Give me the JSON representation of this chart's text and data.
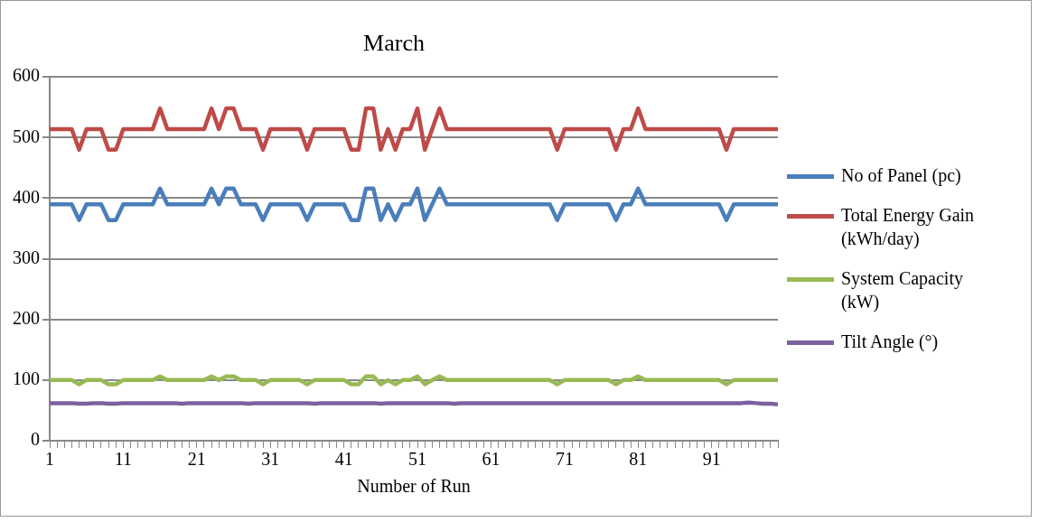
{
  "chart_data": {
    "type": "line",
    "title": "March",
    "xlabel": "Number of Run",
    "categories": [
      "1",
      null,
      null,
      null,
      null,
      null,
      null,
      null,
      null,
      null,
      "11",
      null,
      null,
      null,
      null,
      null,
      null,
      null,
      null,
      null,
      "21",
      null,
      null,
      null,
      null,
      null,
      null,
      null,
      null,
      null,
      "31",
      null,
      null,
      null,
      null,
      null,
      null,
      null,
      null,
      null,
      "41",
      null,
      null,
      null,
      null,
      null,
      null,
      null,
      null,
      null,
      "51",
      null,
      null,
      null,
      null,
      null,
      null,
      null,
      null,
      null,
      "61",
      null,
      null,
      null,
      null,
      null,
      null,
      null,
      null,
      null,
      "71",
      null,
      null,
      null,
      null,
      null,
      null,
      null,
      null,
      null,
      "81",
      null,
      null,
      null,
      null,
      null,
      null,
      null,
      null,
      null,
      "91",
      null,
      null,
      null,
      null,
      null,
      null,
      null,
      null,
      null
    ],
    "series": [
      {
        "name": "No of Panel (pc)",
        "color": "#4a7ebb",
        "values": [
          390,
          390,
          390,
          390,
          364,
          390,
          390,
          390,
          364,
          364,
          390,
          390,
          390,
          390,
          390,
          416,
          390,
          390,
          390,
          390,
          390,
          390,
          416,
          390,
          416,
          416,
          390,
          390,
          390,
          364,
          390,
          390,
          390,
          390,
          390,
          364,
          390,
          390,
          390,
          390,
          390,
          364,
          364,
          416,
          416,
          364,
          390,
          364,
          390,
          390,
          416,
          364,
          390,
          416,
          390,
          390,
          390,
          390,
          390,
          390,
          390,
          390,
          390,
          390,
          390,
          390,
          390,
          390,
          390,
          364,
          390,
          390,
          390,
          390,
          390,
          390,
          390,
          364,
          390,
          390,
          416,
          390,
          390,
          390,
          390,
          390,
          390,
          390,
          390,
          390,
          390,
          390,
          364,
          390,
          390,
          390,
          390,
          390,
          390,
          390
        ]
      },
      {
        "name": "Total Energy Gain (kWh/day)",
        "color": "#be4b48",
        "values": [
          514,
          514,
          514,
          514,
          480,
          514,
          514,
          514,
          480,
          480,
          514,
          514,
          514,
          514,
          514,
          548,
          514,
          514,
          514,
          514,
          514,
          514,
          548,
          514,
          548,
          548,
          514,
          514,
          514,
          480,
          514,
          514,
          514,
          514,
          514,
          480,
          514,
          514,
          514,
          514,
          514,
          480,
          480,
          548,
          548,
          480,
          514,
          480,
          514,
          514,
          548,
          480,
          514,
          548,
          514,
          514,
          514,
          514,
          514,
          514,
          514,
          514,
          514,
          514,
          514,
          514,
          514,
          514,
          514,
          480,
          514,
          514,
          514,
          514,
          514,
          514,
          514,
          480,
          514,
          514,
          548,
          514,
          514,
          514,
          514,
          514,
          514,
          514,
          514,
          514,
          514,
          514,
          480,
          514,
          514,
          514,
          514,
          514,
          514,
          514
        ]
      },
      {
        "name": "System Capacity (kW)",
        "color": "#98b954",
        "values": [
          100,
          100,
          100,
          100,
          93,
          100,
          100,
          100,
          93,
          93,
          100,
          100,
          100,
          100,
          100,
          106,
          100,
          100,
          100,
          100,
          100,
          100,
          106,
          100,
          106,
          106,
          100,
          100,
          100,
          93,
          100,
          100,
          100,
          100,
          100,
          93,
          100,
          100,
          100,
          100,
          100,
          93,
          93,
          106,
          106,
          93,
          100,
          93,
          100,
          100,
          106,
          93,
          100,
          106,
          100,
          100,
          100,
          100,
          100,
          100,
          100,
          100,
          100,
          100,
          100,
          100,
          100,
          100,
          100,
          93,
          100,
          100,
          100,
          100,
          100,
          100,
          100,
          93,
          100,
          100,
          106,
          100,
          100,
          100,
          100,
          100,
          100,
          100,
          100,
          100,
          100,
          100,
          93,
          100,
          100,
          100,
          100,
          100,
          100,
          100
        ]
      },
      {
        "name": "Tilt Angle (°)",
        "color": "#7d60a0",
        "values": [
          62,
          62,
          62,
          62,
          61,
          61,
          62,
          62,
          61,
          61,
          62,
          62,
          62,
          62,
          62,
          62,
          62,
          62,
          61,
          62,
          62,
          62,
          62,
          62,
          62,
          62,
          62,
          61,
          62,
          62,
          62,
          62,
          62,
          62,
          62,
          62,
          61,
          62,
          62,
          62,
          62,
          62,
          62,
          62,
          62,
          61,
          62,
          62,
          62,
          62,
          62,
          62,
          62,
          62,
          62,
          61,
          62,
          62,
          62,
          62,
          62,
          62,
          62,
          62,
          62,
          62,
          62,
          62,
          62,
          62,
          62,
          62,
          62,
          62,
          62,
          62,
          62,
          62,
          62,
          62,
          62,
          62,
          62,
          62,
          62,
          62,
          62,
          62,
          62,
          62,
          62,
          62,
          62,
          62,
          62,
          63,
          62,
          61,
          61,
          60
        ]
      }
    ],
    "ylim": [
      0,
      600
    ],
    "yticks": [
      0,
      100,
      200,
      300,
      400,
      500,
      600
    ],
    "grid": "y",
    "legend": "right"
  }
}
